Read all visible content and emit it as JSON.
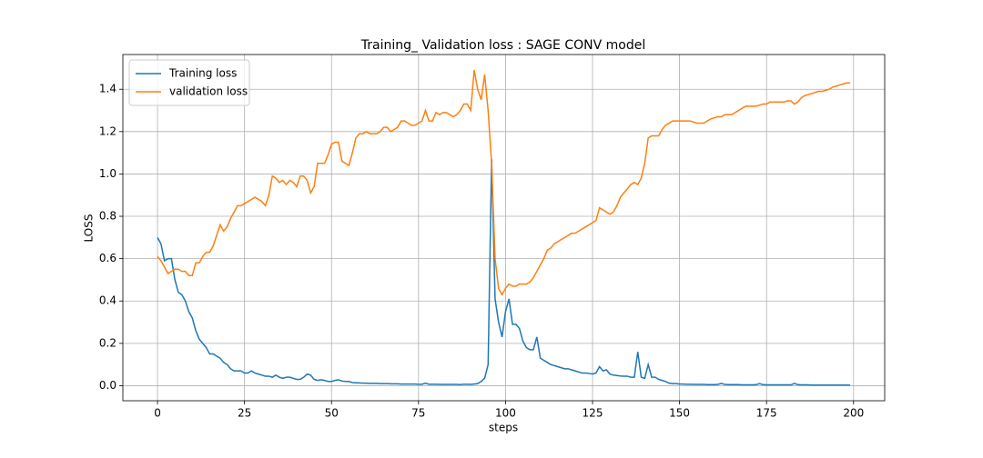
{
  "chart_data": {
    "type": "line",
    "title": "Training_ Validation loss : SAGE CONV model",
    "x_label": "steps",
    "y_label": "LOSS",
    "x": [
      0,
      1,
      2,
      3,
      4,
      5,
      6,
      7,
      8,
      9,
      10,
      11,
      12,
      13,
      14,
      15,
      16,
      17,
      18,
      19,
      20,
      21,
      22,
      23,
      24,
      25,
      26,
      27,
      28,
      29,
      30,
      31,
      32,
      33,
      34,
      35,
      36,
      37,
      38,
      39,
      40,
      41,
      42,
      43,
      44,
      45,
      46,
      47,
      48,
      49,
      50,
      51,
      52,
      53,
      54,
      55,
      56,
      57,
      58,
      59,
      60,
      61,
      62,
      63,
      64,
      65,
      66,
      67,
      68,
      69,
      70,
      71,
      72,
      73,
      74,
      75,
      76,
      77,
      78,
      79,
      80,
      81,
      82,
      83,
      84,
      85,
      86,
      87,
      88,
      89,
      90,
      91,
      92,
      93,
      94,
      95,
      96,
      97,
      98,
      99,
      100,
      101,
      102,
      103,
      104,
      105,
      106,
      107,
      108,
      109,
      110,
      111,
      112,
      113,
      114,
      115,
      116,
      117,
      118,
      119,
      120,
      121,
      122,
      123,
      124,
      125,
      126,
      127,
      128,
      129,
      130,
      131,
      132,
      133,
      134,
      135,
      136,
      137,
      138,
      139,
      140,
      141,
      142,
      143,
      144,
      145,
      146,
      147,
      148,
      149,
      150,
      151,
      152,
      153,
      154,
      155,
      156,
      157,
      158,
      159,
      160,
      161,
      162,
      163,
      164,
      165,
      166,
      167,
      168,
      169,
      170,
      171,
      172,
      173,
      174,
      175,
      176,
      177,
      178,
      179,
      180,
      181,
      182,
      183,
      184,
      185,
      186,
      187,
      188,
      189,
      190,
      191,
      192,
      193,
      194,
      195,
      196,
      197,
      198,
      199
    ],
    "series": [
      {
        "name": "Training loss",
        "color": "#1f77b4",
        "values": [
          0.7,
          0.67,
          0.59,
          0.6,
          0.6,
          0.5,
          0.44,
          0.43,
          0.4,
          0.35,
          0.32,
          0.26,
          0.22,
          0.2,
          0.18,
          0.15,
          0.15,
          0.14,
          0.13,
          0.11,
          0.1,
          0.08,
          0.07,
          0.07,
          0.07,
          0.06,
          0.06,
          0.07,
          0.06,
          0.055,
          0.05,
          0.045,
          0.045,
          0.04,
          0.05,
          0.04,
          0.035,
          0.04,
          0.04,
          0.035,
          0.03,
          0.03,
          0.04,
          0.055,
          0.05,
          0.03,
          0.025,
          0.028,
          0.025,
          0.02,
          0.02,
          0.025,
          0.028,
          0.022,
          0.02,
          0.02,
          0.015,
          0.014,
          0.013,
          0.012,
          0.012,
          0.011,
          0.011,
          0.011,
          0.01,
          0.01,
          0.01,
          0.009,
          0.009,
          0.009,
          0.008,
          0.008,
          0.008,
          0.008,
          0.008,
          0.007,
          0.007,
          0.012,
          0.007,
          0.007,
          0.007,
          0.006,
          0.006,
          0.006,
          0.006,
          0.006,
          0.006,
          0.005,
          0.007,
          0.007,
          0.006,
          0.008,
          0.01,
          0.02,
          0.035,
          0.1,
          1.07,
          0.41,
          0.3,
          0.23,
          0.35,
          0.41,
          0.29,
          0.29,
          0.27,
          0.21,
          0.18,
          0.17,
          0.17,
          0.23,
          0.13,
          0.12,
          0.11,
          0.1,
          0.095,
          0.09,
          0.085,
          0.08,
          0.08,
          0.075,
          0.07,
          0.065,
          0.06,
          0.06,
          0.058,
          0.055,
          0.06,
          0.09,
          0.07,
          0.075,
          0.055,
          0.05,
          0.048,
          0.046,
          0.045,
          0.045,
          0.04,
          0.04,
          0.16,
          0.04,
          0.035,
          0.1,
          0.04,
          0.04,
          0.03,
          0.025,
          0.02,
          0.012,
          0.01,
          0.01,
          0.008,
          0.008,
          0.007,
          0.007,
          0.006,
          0.006,
          0.006,
          0.006,
          0.005,
          0.005,
          0.005,
          0.006,
          0.011,
          0.006,
          0.005,
          0.005,
          0.005,
          0.005,
          0.004,
          0.004,
          0.004,
          0.004,
          0.005,
          0.01,
          0.005,
          0.004,
          0.004,
          0.004,
          0.004,
          0.004,
          0.004,
          0.004,
          0.004,
          0.011,
          0.005,
          0.004,
          0.004,
          0.004,
          0.003,
          0.003,
          0.003,
          0.003,
          0.003,
          0.003,
          0.003,
          0.003,
          0.003,
          0.003,
          0.003,
          0.003
        ]
      },
      {
        "name": "validation loss",
        "color": "#ff7f0e",
        "values": [
          0.61,
          0.59,
          0.56,
          0.53,
          0.54,
          0.55,
          0.55,
          0.54,
          0.54,
          0.52,
          0.52,
          0.58,
          0.58,
          0.61,
          0.63,
          0.63,
          0.66,
          0.71,
          0.76,
          0.73,
          0.75,
          0.79,
          0.82,
          0.85,
          0.85,
          0.86,
          0.87,
          0.88,
          0.89,
          0.88,
          0.87,
          0.85,
          0.9,
          0.99,
          0.98,
          0.96,
          0.97,
          0.95,
          0.97,
          0.96,
          0.94,
          0.99,
          0.99,
          0.97,
          0.91,
          0.94,
          1.05,
          1.05,
          1.05,
          1.09,
          1.14,
          1.15,
          1.15,
          1.06,
          1.05,
          1.04,
          1.1,
          1.17,
          1.19,
          1.19,
          1.2,
          1.19,
          1.19,
          1.19,
          1.2,
          1.22,
          1.22,
          1.2,
          1.21,
          1.22,
          1.25,
          1.25,
          1.24,
          1.23,
          1.23,
          1.24,
          1.25,
          1.3,
          1.25,
          1.25,
          1.29,
          1.28,
          1.29,
          1.29,
          1.28,
          1.27,
          1.28,
          1.3,
          1.33,
          1.33,
          1.3,
          1.49,
          1.4,
          1.35,
          1.47,
          1.3,
          1.05,
          0.6,
          0.46,
          0.43,
          0.46,
          0.48,
          0.47,
          0.47,
          0.48,
          0.48,
          0.48,
          0.49,
          0.51,
          0.54,
          0.57,
          0.6,
          0.64,
          0.65,
          0.67,
          0.68,
          0.69,
          0.7,
          0.71,
          0.72,
          0.72,
          0.73,
          0.74,
          0.75,
          0.76,
          0.77,
          0.78,
          0.84,
          0.83,
          0.82,
          0.81,
          0.82,
          0.85,
          0.89,
          0.91,
          0.93,
          0.95,
          0.96,
          0.95,
          0.98,
          1.05,
          1.17,
          1.18,
          1.18,
          1.18,
          1.21,
          1.23,
          1.24,
          1.25,
          1.25,
          1.25,
          1.25,
          1.25,
          1.25,
          1.245,
          1.24,
          1.24,
          1.24,
          1.25,
          1.26,
          1.265,
          1.27,
          1.27,
          1.28,
          1.28,
          1.28,
          1.29,
          1.3,
          1.31,
          1.32,
          1.32,
          1.32,
          1.32,
          1.325,
          1.33,
          1.33,
          1.34,
          1.34,
          1.34,
          1.34,
          1.34,
          1.345,
          1.345,
          1.33,
          1.34,
          1.36,
          1.37,
          1.375,
          1.38,
          1.385,
          1.39,
          1.39,
          1.395,
          1.4,
          1.41,
          1.415,
          1.42,
          1.425,
          1.43,
          1.43
        ]
      }
    ],
    "xlim": [
      -9.95,
      208.95
    ],
    "ylim": [
      -0.071,
      1.564
    ],
    "xticks": [
      0,
      25,
      50,
      75,
      100,
      125,
      150,
      175,
      200
    ],
    "yticks": [
      {
        "value": 0,
        "label": "0.0"
      },
      0.2,
      0.4,
      0.6,
      0.8,
      {
        "value": 1,
        "label": "1.0"
      },
      1.2,
      1.4
    ],
    "grid": true,
    "legend": "upper left"
  }
}
